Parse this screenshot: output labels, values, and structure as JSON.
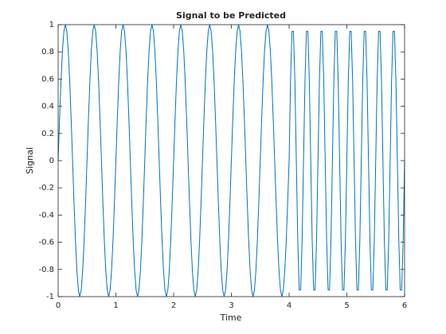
{
  "chart_data": {
    "type": "line",
    "title": "Signal to be Predicted",
    "x_label": "Time",
    "y_label": "Signal",
    "color": "#0072bd",
    "xlim": [
      0,
      6
    ],
    "xticks": [
      0,
      1,
      2,
      3,
      4,
      5,
      6
    ],
    "ylim": [
      -1,
      1
    ],
    "yticks": [
      -1,
      -0.8,
      -0.6,
      -0.4,
      -0.2,
      0,
      0.2,
      0.4,
      0.6,
      0.8,
      1
    ],
    "x": [
      0,
      0.025,
      0.05,
      0.075,
      0.1,
      0.125,
      0.15,
      0.175,
      0.2,
      0.225,
      0.25,
      0.275,
      0.3,
      0.325,
      0.35,
      0.375,
      0.4,
      0.425,
      0.45,
      0.475,
      0.5,
      0.525,
      0.55,
      0.575,
      0.6,
      0.625,
      0.65,
      0.675,
      0.7,
      0.725,
      0.75,
      0.775,
      0.8,
      0.825,
      0.85,
      0.875,
      0.9,
      0.925,
      0.95,
      0.975,
      1,
      1.025,
      1.05,
      1.075,
      1.1,
      1.125,
      1.15,
      1.175,
      1.2,
      1.225,
      1.25,
      1.275,
      1.3,
      1.325,
      1.35,
      1.375,
      1.4,
      1.425,
      1.45,
      1.475,
      1.5,
      1.525,
      1.55,
      1.575,
      1.6,
      1.625,
      1.65,
      1.675,
      1.7,
      1.725,
      1.75,
      1.775,
      1.8,
      1.825,
      1.85,
      1.875,
      1.9,
      1.925,
      1.95,
      1.975,
      2,
      2.025,
      2.05,
      2.075,
      2.1,
      2.125,
      2.15,
      2.175,
      2.2,
      2.225,
      2.25,
      2.275,
      2.3,
      2.325,
      2.35,
      2.375,
      2.4,
      2.425,
      2.45,
      2.475,
      2.5,
      2.525,
      2.55,
      2.575,
      2.6,
      2.625,
      2.65,
      2.675,
      2.7,
      2.725,
      2.75,
      2.775,
      2.8,
      2.825,
      2.85,
      2.875,
      2.9,
      2.925,
      2.95,
      2.975,
      3,
      3.025,
      3.05,
      3.075,
      3.1,
      3.125,
      3.15,
      3.175,
      3.2,
      3.225,
      3.25,
      3.275,
      3.3,
      3.325,
      3.35,
      3.375,
      3.4,
      3.425,
      3.45,
      3.475,
      3.5,
      3.525,
      3.55,
      3.575,
      3.6,
      3.625,
      3.65,
      3.675,
      3.7,
      3.725,
      3.75,
      3.775,
      3.8,
      3.825,
      3.85,
      3.875,
      3.9,
      3.925,
      3.95,
      3.975,
      4,
      4.025,
      4.05,
      4.075,
      4.1,
      4.125,
      4.15,
      4.175,
      4.2,
      4.225,
      4.25,
      4.275,
      4.3,
      4.325,
      4.35,
      4.375,
      4.4,
      4.425,
      4.45,
      4.475,
      4.5,
      4.525,
      4.55,
      4.575,
      4.6,
      4.625,
      4.65,
      4.675,
      4.7,
      4.725,
      4.75,
      4.775,
      4.8,
      4.825,
      4.85,
      4.875,
      4.9,
      4.925,
      4.95,
      4.975,
      5,
      5.025,
      5.05,
      5.075,
      5.1,
      5.125,
      5.15,
      5.175,
      5.2,
      5.225,
      5.25,
      5.275,
      5.3,
      5.325,
      5.35,
      5.375,
      5.4,
      5.425,
      5.45,
      5.475,
      5.5,
      5.525,
      5.55,
      5.575,
      5.6,
      5.625,
      5.65,
      5.675,
      5.7,
      5.725,
      5.75,
      5.775,
      5.8,
      5.825,
      5.85,
      5.875,
      5.9,
      5.925,
      5.95,
      5.975,
      6
    ],
    "values": [
      0,
      0.309,
      0.588,
      0.809,
      0.951,
      1,
      0.951,
      0.809,
      0.588,
      0.309,
      0,
      -0.309,
      -0.588,
      -0.809,
      -0.951,
      -1,
      -0.951,
      -0.809,
      -0.588,
      -0.309,
      0,
      0.309,
      0.588,
      0.809,
      0.951,
      1,
      0.951,
      0.809,
      0.588,
      0.309,
      0,
      -0.309,
      -0.588,
      -0.809,
      -0.951,
      -1,
      -0.951,
      -0.809,
      -0.588,
      -0.309,
      0,
      0.309,
      0.588,
      0.809,
      0.951,
      1,
      0.951,
      0.809,
      0.588,
      0.309,
      0,
      -0.309,
      -0.588,
      -0.809,
      -0.951,
      -1,
      -0.951,
      -0.809,
      -0.588,
      -0.309,
      0,
      0.309,
      0.588,
      0.809,
      0.951,
      1,
      0.951,
      0.809,
      0.588,
      0.309,
      0,
      -0.309,
      -0.588,
      -0.809,
      -0.951,
      -1,
      -0.951,
      -0.809,
      -0.588,
      -0.309,
      0,
      0.309,
      0.588,
      0.809,
      0.951,
      1,
      0.951,
      0.809,
      0.588,
      0.309,
      0,
      -0.309,
      -0.588,
      -0.809,
      -0.951,
      -1,
      -0.951,
      -0.809,
      -0.588,
      -0.309,
      0,
      0.309,
      0.588,
      0.809,
      0.951,
      1,
      0.951,
      0.809,
      0.588,
      0.309,
      0,
      -0.309,
      -0.588,
      -0.809,
      -0.951,
      -1,
      -0.951,
      -0.809,
      -0.588,
      -0.309,
      0,
      0.309,
      0.588,
      0.809,
      0.951,
      1,
      0.951,
      0.809,
      0.588,
      0.309,
      0,
      -0.309,
      -0.588,
      -0.809,
      -0.951,
      -1,
      -0.951,
      -0.809,
      -0.588,
      -0.309,
      0,
      0.309,
      0.588,
      0.809,
      0.951,
      1,
      0.951,
      0.809,
      0.588,
      0.309,
      0,
      -0.309,
      -0.588,
      -0.809,
      -0.951,
      -1,
      -0.951,
      -0.809,
      -0.588,
      -0.309,
      0,
      0.588,
      0.951,
      0.951,
      0.588,
      0,
      -0.588,
      -0.951,
      -0.951,
      -0.588,
      0,
      0.588,
      0.951,
      0.951,
      0.588,
      0,
      -0.588,
      -0.951,
      -0.951,
      -0.588,
      0,
      0.588,
      0.951,
      0.951,
      0.588,
      0,
      -0.588,
      -0.951,
      -0.951,
      -0.588,
      0,
      0.588,
      0.951,
      0.951,
      0.588,
      0,
      -0.588,
      -0.951,
      -0.951,
      -0.588,
      0,
      0.588,
      0.951,
      0.951,
      0.588,
      0,
      -0.588,
      -0.951,
      -0.951,
      -0.588,
      0,
      0.588,
      0.951,
      0.951,
      0.588,
      0,
      -0.588,
      -0.951,
      -0.951,
      -0.588,
      0,
      0.588,
      0.951,
      0.951,
      0.588,
      0,
      -0.588,
      -0.951,
      -0.951,
      -0.588,
      0,
      0.588,
      0.951,
      0.951,
      0.588,
      0,
      -0.588,
      -0.951,
      -0.951,
      -0.588,
      0
    ]
  }
}
